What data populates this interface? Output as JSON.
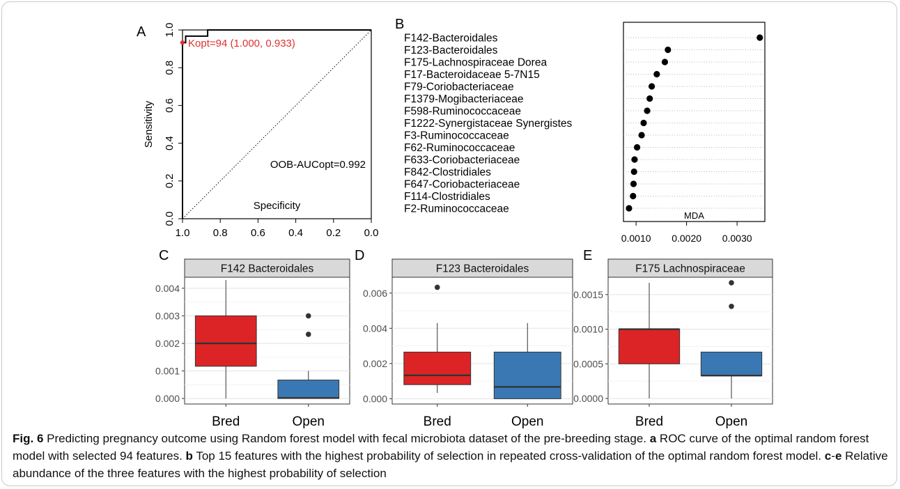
{
  "figure": {
    "caption": {
      "fig_label": "Fig. 6",
      "text_intro": " Predicting pregnancy outcome using Random forest model with fecal microbiota dataset of the pre-breeding stage. ",
      "a_label": "a",
      "a_text": " ROC curve of the optimal random forest model with selected 94 features. ",
      "b_label": "b",
      "b_text": " Top 15 features with the highest probability of selection in repeated cross-validation of the optimal random forest model. ",
      "ce_label_c": "c",
      "ce_dash": "-",
      "ce_label_e": "e",
      "ce_text": " Relative abundance of the three features with the highest probability of selection"
    }
  },
  "chart_data": [
    {
      "panel": "A",
      "type": "line",
      "xlabel": "Specificity",
      "ylabel": "Sensitivity",
      "xlim": [
        1.0,
        0.0
      ],
      "ylim": [
        0.0,
        1.0
      ],
      "x_ticks": [
        "1.0",
        "0.8",
        "0.6",
        "0.4",
        "0.2",
        "0.0"
      ],
      "y_ticks": [
        "0.0",
        "0.2",
        "0.4",
        "0.6",
        "0.8",
        "1.0"
      ],
      "series": [
        {
          "x": [
            1.0,
            1.0,
            0.9833,
            0.9833,
            0.8667,
            0.8667,
            0.0
          ],
          "y": [
            0.0,
            0.933,
            0.933,
            0.967,
            0.967,
            1.0,
            1.0
          ]
        }
      ],
      "diagonal": [
        [
          1.0,
          0.0
        ],
        [
          0.0,
          1.0
        ]
      ],
      "optimal_point": {
        "x": 1.0,
        "y": 0.933,
        "label": "Kopt=94 (1.000, 0.933)",
        "color": "#e03030"
      },
      "annotation": "OOB-AUCopt=0.992"
    },
    {
      "panel": "B",
      "type": "scatter",
      "xlabel": "MDA",
      "x_ticks": [
        "0.0010",
        "0.0020",
        "0.0030"
      ],
      "x_tick_values": [
        0.001,
        0.002,
        0.003
      ],
      "xlim": [
        0.00075,
        0.00355
      ],
      "categories": [
        "F142-Bacteroidales",
        "F123-Bacteroidales",
        "F175-Lachnospiraceae Dorea",
        "F17-Bacteroidaceae 5-7N15",
        "F79-Coriobacteriaceae",
        "F1379-Mogibacteriaceae",
        "F598-Ruminococcaceae",
        "F1222-Synergistaceae Synergistes",
        "F3-Ruminococcaceae",
        "F62-Ruminococcaceae",
        "F633-Coriobacteriaceae",
        "F842-Clostridiales",
        "F647-Coriobacteriaceae",
        "F114-Clostridiales",
        "F2-Ruminococcaceae"
      ],
      "values": [
        0.00345,
        0.00163,
        0.00157,
        0.00141,
        0.00131,
        0.00127,
        0.00122,
        0.00115,
        0.00111,
        0.00102,
        0.00097,
        0.00096,
        0.00095,
        0.00094,
        0.00086
      ]
    },
    {
      "panel": "C",
      "type": "box",
      "title": "F142 Bacteroidales",
      "categories": [
        "Bred",
        "Open"
      ],
      "ylim": [
        -0.0002,
        0.0044
      ],
      "y_ticks": [
        "0.000",
        "0.001",
        "0.002",
        "0.003",
        "0.004"
      ],
      "y_tick_values": [
        0,
        0.001,
        0.002,
        0.003,
        0.004
      ],
      "boxes": [
        {
          "min": 0.0,
          "q1": 0.00117,
          "median": 0.002,
          "q3": 0.003,
          "max": 0.0043,
          "outliers": [],
          "color": "#dc2426"
        },
        {
          "min": 0.0,
          "q1": 0.0,
          "median": 2e-05,
          "q3": 0.00067,
          "max": 0.001,
          "outliers": [
            0.003,
            0.00233
          ],
          "color": "#3a78b4"
        }
      ]
    },
    {
      "panel": "D",
      "type": "box",
      "title": "F123 Bacteroidales",
      "categories": [
        "Bred",
        "Open"
      ],
      "ylim": [
        -0.0003,
        0.0069
      ],
      "y_ticks": [
        "0.000",
        "0.002",
        "0.004",
        "0.006"
      ],
      "y_tick_values": [
        0,
        0.002,
        0.004,
        0.006
      ],
      "boxes": [
        {
          "min": 0.00033,
          "q1": 0.0008,
          "median": 0.00133,
          "q3": 0.00265,
          "max": 0.0043,
          "outliers": [
            0.00633
          ],
          "color": "#dc2426"
        },
        {
          "min": 0.0,
          "q1": 0.0,
          "median": 0.00067,
          "q3": 0.00265,
          "max": 0.0043,
          "outliers": [],
          "color": "#3a78b4"
        }
      ]
    },
    {
      "panel": "E",
      "type": "box",
      "title": "F175 Lachnospiraceae",
      "categories": [
        "Bred",
        "Open"
      ],
      "ylim": [
        -8e-05,
        0.00175
      ],
      "y_ticks": [
        "0.0000",
        "0.0005",
        "0.0010",
        "0.0015"
      ],
      "y_tick_values": [
        0,
        0.0005,
        0.001,
        0.0015
      ],
      "boxes": [
        {
          "min": 0.0,
          "q1": 0.0005,
          "median": 0.001,
          "q3": 0.001,
          "max": 0.00167,
          "outliers": [],
          "color": "#dc2426"
        },
        {
          "min": 0.0,
          "q1": 0.00033,
          "median": 0.00033,
          "q3": 0.00067,
          "max": 0.00067,
          "outliers": [
            0.00167,
            0.00133
          ],
          "color": "#3a78b4"
        }
      ]
    }
  ]
}
